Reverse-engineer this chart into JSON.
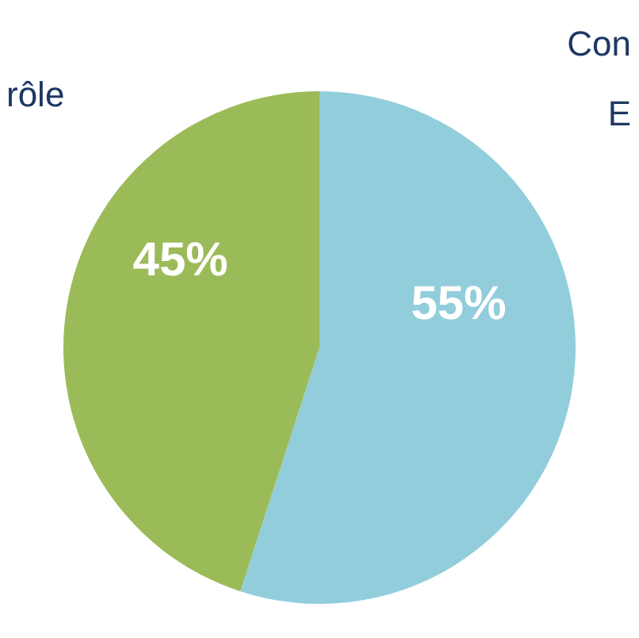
{
  "chart_data": {
    "type": "pie",
    "categories": [
      "Con E",
      "rôle"
    ],
    "values": [
      55,
      45
    ],
    "colors": [
      "#92cddc",
      "#9bbb59"
    ],
    "value_labels": [
      "55%",
      "45%"
    ],
    "legend": false
  }
}
